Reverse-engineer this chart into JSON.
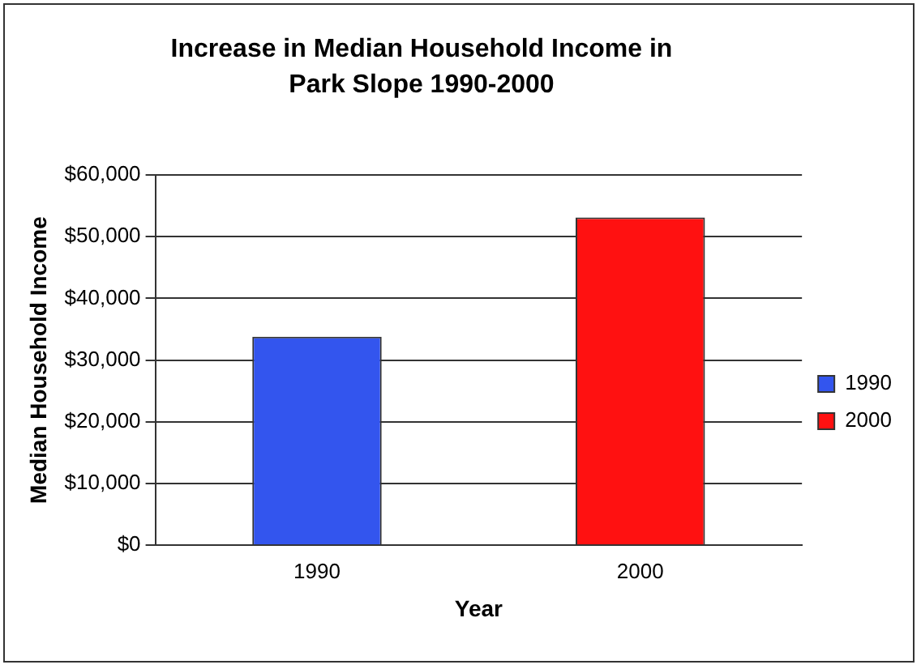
{
  "chart_data": {
    "type": "bar",
    "title": "Increase in Median Household Income in Park Slope 1990-2000",
    "xlabel": "Year",
    "ylabel": "Median Household Income",
    "categories": [
      "1990",
      "2000"
    ],
    "series": [
      {
        "name": "1990",
        "color": "#3355ee",
        "values": [
          33800,
          null
        ]
      },
      {
        "name": "2000",
        "color": "#ff1111",
        "values": [
          null,
          53100
        ]
      }
    ],
    "ylim": [
      0,
      60000
    ],
    "yticks": [
      {
        "value": 0,
        "label": "$0"
      },
      {
        "value": 10000,
        "label": "$10,000"
      },
      {
        "value": 20000,
        "label": "$20,000"
      },
      {
        "value": 30000,
        "label": "$30,000"
      },
      {
        "value": 40000,
        "label": "$40,000"
      },
      {
        "value": 50000,
        "label": "$50,000"
      },
      {
        "value": 60000,
        "label": "$60,000"
      }
    ],
    "grid": "y",
    "legend": "right"
  }
}
